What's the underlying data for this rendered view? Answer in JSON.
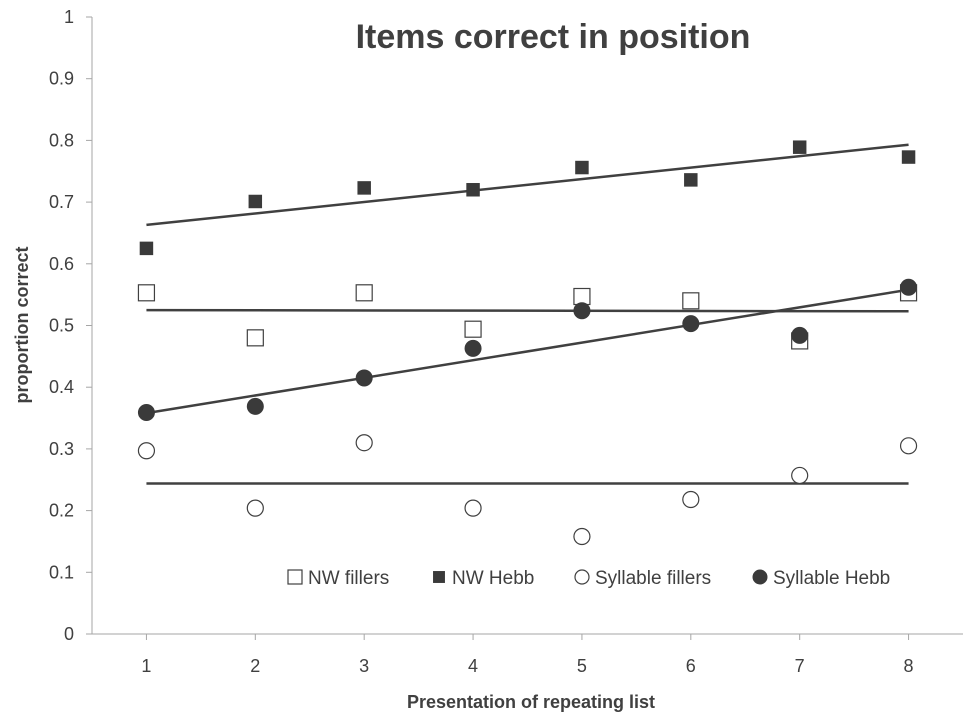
{
  "chart_data": {
    "type": "scatter",
    "title": "Items correct in position",
    "xlabel": "Presentation of repeating list",
    "ylabel": "proportion correct",
    "xlim": [
      0.5,
      8.5
    ],
    "ylim": [
      0,
      1
    ],
    "x_ticks": [
      1,
      2,
      3,
      4,
      5,
      6,
      7,
      8
    ],
    "y_ticks": [
      "0",
      "0.1",
      "0.2",
      "0.3",
      "0.4",
      "0.5",
      "0.6",
      "0.7",
      "0.8",
      "0.9",
      "1"
    ],
    "grid": false,
    "legend_position": "bottom-right",
    "series": [
      {
        "name": "NW fillers",
        "marker": "square-open",
        "x": [
          1,
          2,
          3,
          4,
          5,
          6,
          7,
          8
        ],
        "values": [
          0.553,
          0.48,
          0.553,
          0.494,
          0.547,
          0.54,
          0.475,
          0.553
        ],
        "trendline": [
          0.525,
          0.523
        ]
      },
      {
        "name": "NW Hebb",
        "marker": "square-filled",
        "x": [
          1,
          2,
          3,
          4,
          5,
          6,
          7,
          8
        ],
        "values": [
          0.625,
          0.701,
          0.723,
          0.72,
          0.756,
          0.736,
          0.789,
          0.773
        ],
        "trendline": [
          0.663,
          0.793
        ]
      },
      {
        "name": "Syllable fillers",
        "marker": "circle-open",
        "x": [
          1,
          2,
          3,
          4,
          5,
          6,
          7,
          8
        ],
        "values": [
          0.297,
          0.204,
          0.31,
          0.204,
          0.158,
          0.218,
          0.257,
          0.305
        ],
        "trendline": [
          0.244,
          0.244
        ]
      },
      {
        "name": "Syllable Hebb",
        "marker": "circle-filled",
        "x": [
          1,
          2,
          3,
          4,
          5,
          6,
          7,
          8
        ],
        "values": [
          0.359,
          0.369,
          0.415,
          0.463,
          0.524,
          0.503,
          0.484,
          0.562
        ],
        "trendline": [
          0.358,
          0.558
        ]
      }
    ],
    "colors": {
      "marker_fill": "#3a3a3a",
      "trendline": "#404040",
      "axis": "#a6a6a6",
      "text": "#404040"
    }
  }
}
